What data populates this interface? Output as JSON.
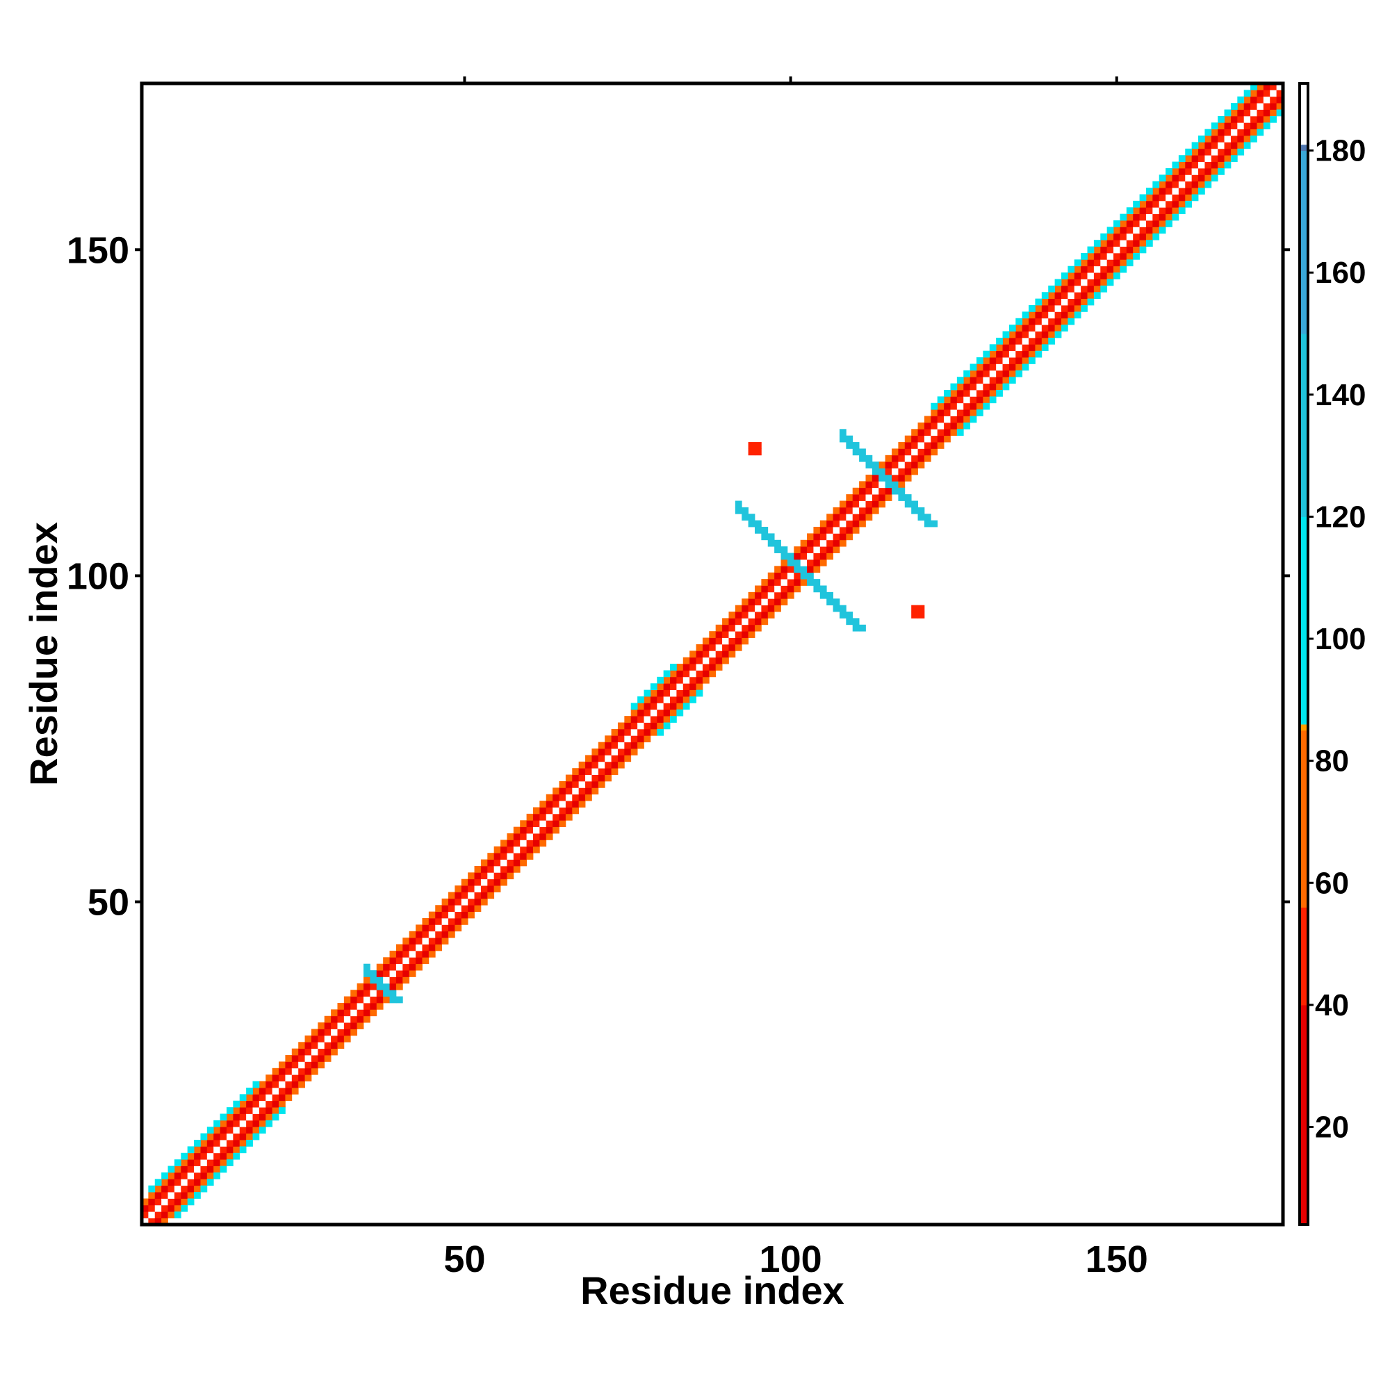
{
  "chart_data": {
    "type": "heatmap",
    "title": "",
    "xlabel": "Residue index",
    "ylabel": "Residue index",
    "xlim": [
      1,
      175
    ],
    "ylim": [
      1,
      175
    ],
    "x_ticks": [
      50,
      100,
      150
    ],
    "y_ticks": [
      50,
      100,
      150
    ],
    "grid": false,
    "colorbar": {
      "position": "right",
      "range": [
        4,
        191
      ],
      "ticks": [
        20,
        40,
        60,
        80,
        100,
        120,
        140,
        160,
        180
      ],
      "color_stops": [
        {
          "value": 4,
          "color": "#e60000"
        },
        {
          "value": 40,
          "color": "#ff2200"
        },
        {
          "value": 56,
          "color": "#ff6a00"
        },
        {
          "value": 85,
          "color": "#ff9d00"
        },
        {
          "value": 86,
          "color": "#00e5ee"
        },
        {
          "value": 120,
          "color": "#20c4dc"
        },
        {
          "value": 150,
          "color": "#3aa8d8"
        },
        {
          "value": 180,
          "color": "#5077b0"
        },
        {
          "value": 181,
          "color": "#ffffff"
        },
        {
          "value": 191,
          "color": "#ffffff"
        }
      ]
    },
    "diagonal_pattern": {
      "from_residue": 1,
      "to_residue": 175,
      "bands": [
        {
          "offset": 0,
          "value": 190
        },
        {
          "offset": 1,
          "value": 55
        },
        {
          "offset": 2,
          "value": 15
        },
        {
          "offset": 3,
          "value": 70
        }
      ],
      "helical_segments": [
        {
          "start": 2,
          "end": 18,
          "value": 95
        },
        {
          "start": 76,
          "end": 82,
          "value": 95
        },
        {
          "start": 122,
          "end": 133,
          "value": 98
        },
        {
          "start": 134,
          "end": 172,
          "value": 100
        }
      ]
    },
    "contact_segments": [
      {
        "name": "antiparallel-sheet-a",
        "i_start": 92,
        "i_end": 110,
        "j_start": 110,
        "j_end": 92,
        "value": 135,
        "width": 2
      },
      {
        "name": "antiparallel-sheet-b",
        "i_start": 108,
        "i_end": 121,
        "j_start": 121,
        "j_end": 108,
        "value": 135,
        "width": 2
      },
      {
        "name": "short-contact",
        "i_start": 35,
        "i_end": 39,
        "j_start": 39,
        "j_end": 35,
        "value": 130,
        "width": 2
      }
    ],
    "isolated_contacts": [
      {
        "i": 94,
        "j": 119,
        "value": 42
      },
      {
        "i": 119,
        "j": 94,
        "value": 42
      }
    ]
  }
}
